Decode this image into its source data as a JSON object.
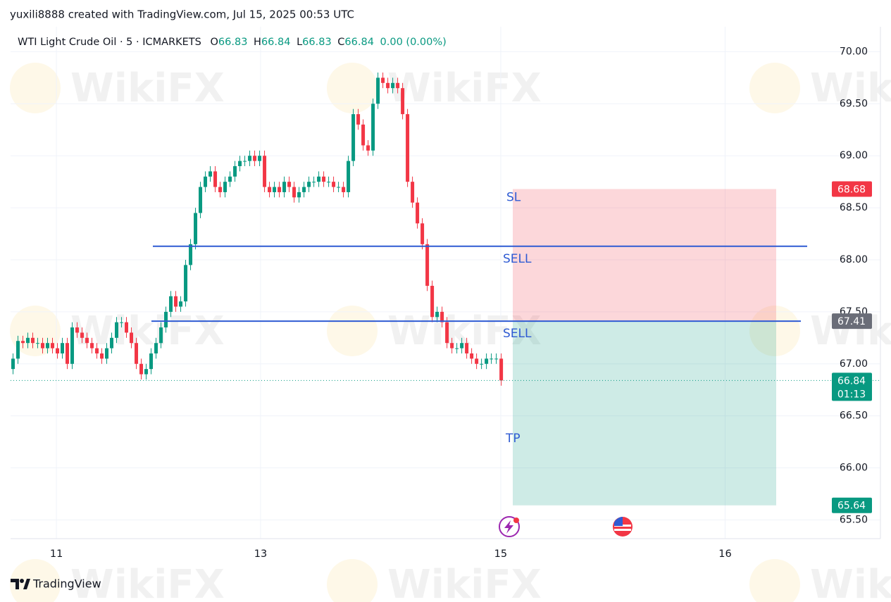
{
  "header": "yuxili8888 created with TradingView.com, Jul 15, 2025 00:53 UTC",
  "footer_brand": "TradingView",
  "watermark": "WikiFX",
  "chart_data": {
    "type": "candlestick",
    "symbol": "WTI Light Crude Oil · 5 · ICMARKETS",
    "legend": {
      "o_label": "O",
      "o": 66.83,
      "h_label": "H",
      "h": 66.84,
      "l_label": "L",
      "l": 66.83,
      "c_label": "C",
      "c": 66.84,
      "change": "0.00 (0.00%)"
    },
    "up_color": "#089981",
    "down_color": "#f23645",
    "open": [
      66.95,
      67.05,
      67.22,
      67.2,
      67.25,
      67.2,
      67.2,
      67.15,
      67.2,
      67.15,
      67.1,
      67.2,
      67.0,
      67.35,
      67.3,
      67.25,
      67.2,
      67.15,
      67.1,
      67.05,
      67.15,
      67.25,
      67.4,
      67.4,
      67.3,
      67.2,
      67.0,
      66.9,
      66.95,
      67.1,
      67.2,
      67.35,
      67.5,
      67.65,
      67.55,
      67.6,
      67.95,
      68.15,
      68.45,
      68.7,
      68.8,
      68.85,
      68.7,
      68.65,
      68.75,
      68.8,
      68.9,
      68.95,
      68.95,
      69.0,
      68.95,
      69.0,
      68.7,
      68.65,
      68.7,
      68.65,
      68.75,
      68.7,
      68.6,
      68.65,
      68.7,
      68.75,
      68.75,
      68.8,
      68.75,
      68.75,
      68.7,
      68.7,
      68.65,
      68.95,
      69.4,
      69.3,
      69.1,
      69.05,
      69.5,
      69.75,
      69.7,
      69.65,
      69.7,
      69.65,
      69.4,
      68.75,
      68.55,
      68.35,
      68.15,
      67.75,
      67.45,
      67.5,
      67.4,
      67.2,
      67.15,
      67.15,
      67.2,
      67.1,
      67.05,
      67.0,
      67.0,
      67.05,
      67.05,
      67.05
    ],
    "high": [
      67.1,
      67.27,
      67.27,
      67.3,
      67.3,
      67.25,
      67.25,
      67.25,
      67.25,
      67.2,
      67.25,
      67.25,
      67.4,
      67.4,
      67.35,
      67.3,
      67.25,
      67.2,
      67.15,
      67.2,
      67.3,
      67.45,
      67.45,
      67.45,
      67.35,
      67.25,
      67.05,
      67.0,
      67.15,
      67.25,
      67.4,
      67.55,
      67.7,
      67.7,
      67.65,
      68.0,
      68.2,
      68.5,
      68.75,
      68.85,
      68.9,
      68.9,
      68.75,
      68.8,
      68.85,
      68.95,
      69.0,
      69.0,
      69.05,
      69.05,
      69.05,
      69.05,
      68.75,
      68.75,
      68.75,
      68.8,
      68.8,
      68.75,
      68.7,
      68.75,
      68.8,
      68.8,
      68.85,
      68.85,
      68.8,
      68.8,
      68.75,
      68.75,
      69.0,
      69.45,
      69.45,
      69.35,
      69.15,
      69.55,
      69.8,
      69.8,
      69.75,
      69.75,
      69.75,
      69.7,
      69.45,
      68.8,
      68.6,
      68.4,
      68.2,
      67.8,
      67.55,
      67.55,
      67.45,
      67.25,
      67.2,
      67.25,
      67.25,
      67.15,
      67.1,
      67.05,
      67.1,
      67.1,
      67.1,
      67.1
    ],
    "low": [
      66.9,
      67.0,
      67.15,
      67.15,
      67.15,
      67.15,
      67.1,
      67.1,
      67.1,
      67.05,
      67.05,
      66.95,
      66.95,
      67.25,
      67.2,
      67.15,
      67.1,
      67.05,
      67.0,
      67.0,
      67.1,
      67.2,
      67.35,
      67.25,
      67.15,
      66.95,
      66.85,
      66.85,
      66.9,
      67.05,
      67.15,
      67.3,
      67.45,
      67.5,
      67.5,
      67.55,
      67.9,
      68.1,
      68.4,
      68.65,
      68.75,
      68.65,
      68.6,
      68.6,
      68.7,
      68.75,
      68.85,
      68.9,
      68.9,
      68.9,
      68.9,
      68.65,
      68.6,
      68.6,
      68.6,
      68.6,
      68.65,
      68.55,
      68.55,
      68.6,
      68.65,
      68.7,
      68.7,
      68.7,
      68.7,
      68.65,
      68.65,
      68.6,
      68.6,
      68.9,
      69.25,
      69.05,
      69.0,
      69.0,
      69.45,
      69.65,
      69.6,
      69.6,
      69.6,
      69.35,
      68.7,
      68.5,
      68.3,
      68.1,
      67.7,
      67.4,
      67.4,
      67.35,
      67.15,
      67.1,
      67.1,
      67.1,
      67.05,
      67.0,
      66.95,
      66.95,
      66.95,
      67.0,
      67.0,
      66.79
    ],
    "close": [
      67.05,
      67.22,
      67.2,
      67.25,
      67.2,
      67.2,
      67.15,
      67.2,
      67.15,
      67.1,
      67.2,
      67.0,
      67.35,
      67.3,
      67.25,
      67.2,
      67.15,
      67.1,
      67.05,
      67.15,
      67.25,
      67.4,
      67.4,
      67.3,
      67.2,
      67.0,
      66.9,
      66.95,
      67.1,
      67.2,
      67.35,
      67.5,
      67.65,
      67.55,
      67.6,
      67.95,
      68.15,
      68.45,
      68.7,
      68.8,
      68.85,
      68.7,
      68.65,
      68.75,
      68.8,
      68.9,
      68.95,
      68.95,
      69.0,
      68.95,
      69.0,
      68.7,
      68.65,
      68.7,
      68.65,
      68.75,
      68.7,
      68.6,
      68.65,
      68.7,
      68.75,
      68.75,
      68.8,
      68.75,
      68.75,
      68.7,
      68.7,
      68.65,
      68.95,
      69.4,
      69.3,
      69.1,
      69.05,
      69.5,
      69.75,
      69.7,
      69.65,
      69.7,
      69.65,
      69.4,
      68.75,
      68.55,
      68.35,
      68.15,
      67.75,
      67.45,
      67.5,
      67.4,
      67.2,
      67.15,
      67.15,
      67.2,
      67.1,
      67.05,
      67.0,
      67.0,
      67.05,
      67.05,
      67.05,
      66.84
    ],
    "xlim": [
      -0.5,
      175.9
    ],
    "xticks": [
      {
        "value": 8.8,
        "label": "11"
      },
      {
        "value": 50.2,
        "label": "13"
      },
      {
        "value": 98.9,
        "label": "15"
      },
      {
        "value": 144.4,
        "label": "16"
      }
    ],
    "ylim": [
      65.32,
      70.24
    ],
    "yticks": [
      {
        "value": 65.5,
        "label": "65.50"
      },
      {
        "value": 66,
        "label": "66.00"
      },
      {
        "value": 66.5,
        "label": "66.50"
      },
      {
        "value": 67,
        "label": "67.00"
      },
      {
        "value": 67.5,
        "label": "67.50"
      },
      {
        "value": 68,
        "label": "68.00"
      },
      {
        "value": 68.5,
        "label": "68.50"
      },
      {
        "value": 69,
        "label": "69.00"
      },
      {
        "value": 69.5,
        "label": "69.50"
      },
      {
        "value": 70,
        "label": "70.00"
      }
    ],
    "grid": true,
    "last_price": 66.84,
    "countdown": "01:13",
    "hlines": [
      {
        "value": 68.13,
        "color": "#2f5bd3"
      },
      {
        "value": 67.41,
        "color": "#2f5bd3"
      }
    ],
    "position": {
      "stop": 68.68,
      "entry": 67.41,
      "target": 65.64,
      "stop_color": "#f23645",
      "entry_color": "#6a6d78",
      "target_color": "#089981"
    },
    "annotations": [
      "SL",
      "SELL",
      "SELL",
      "TP"
    ]
  }
}
